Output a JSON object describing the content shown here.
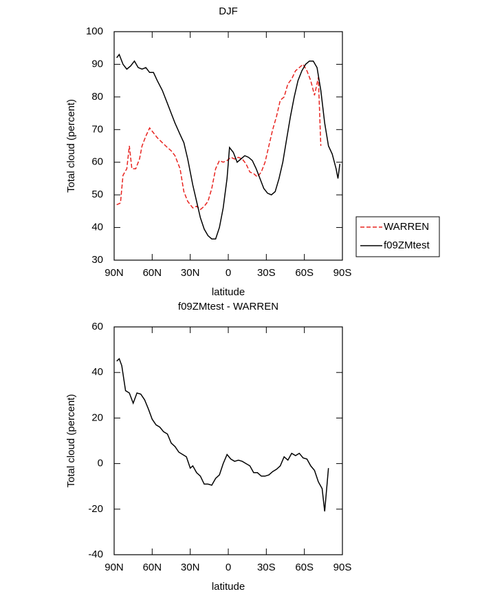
{
  "chart_data": [
    {
      "type": "line",
      "title": "DJF",
      "xlabel": "latitude",
      "ylabel": "Total cloud (percent)",
      "xlim": [
        90,
        -90
      ],
      "xticks": [
        {
          "value": 90,
          "label": "90N"
        },
        {
          "value": 60,
          "label": "60N"
        },
        {
          "value": 30,
          "label": "30N"
        },
        0,
        {
          "value": -30,
          "label": "30S"
        },
        {
          "value": -60,
          "label": "60S"
        },
        {
          "value": -90,
          "label": "90S"
        }
      ],
      "ylim": [
        30,
        100
      ],
      "yticks": [
        30,
        40,
        50,
        60,
        70,
        80,
        90,
        100
      ],
      "legend": "right",
      "series": [
        {
          "name": "WARREN",
          "color": "#e8231f",
          "dash": true,
          "x": [
            88,
            85,
            83,
            80,
            78,
            76,
            73,
            70,
            68,
            65,
            62,
            59,
            56,
            52,
            48,
            45,
            42,
            38,
            35,
            32,
            28,
            25,
            22,
            19,
            16,
            13,
            10,
            7,
            4,
            1,
            -2,
            -5,
            -8,
            -11,
            -14,
            -17,
            -20,
            -23,
            -26,
            -29,
            -32,
            -35,
            -38,
            -41,
            -44,
            -47,
            -50,
            -53,
            -56,
            -59,
            -62,
            -65,
            -68,
            -71,
            -73
          ],
          "values": [
            47,
            47.5,
            56,
            58,
            65,
            58,
            58,
            61,
            65,
            68,
            70.5,
            69,
            67.5,
            66,
            64.5,
            63.5,
            62,
            58,
            51,
            48,
            46,
            46.5,
            45.5,
            46.5,
            48,
            52,
            58,
            60.5,
            60,
            60.5,
            61.5,
            61,
            61.5,
            61,
            59.5,
            57,
            56.5,
            55.5,
            57,
            60,
            65,
            70,
            74,
            79,
            80,
            84,
            85.5,
            88,
            89,
            90,
            88,
            85,
            80.5,
            86,
            65
          ]
        },
        {
          "name": "f09ZMtest",
          "color": "#000000",
          "dash": false,
          "x": [
            88,
            86,
            83,
            80,
            77,
            74,
            71,
            68,
            65,
            62,
            59,
            56,
            52,
            48,
            45,
            42,
            38,
            35,
            32,
            28,
            25,
            22,
            19,
            16,
            13,
            10,
            7,
            4,
            1,
            -1,
            -4,
            -7,
            -10,
            -13,
            -16,
            -19,
            -22,
            -25,
            -28,
            -31,
            -34,
            -37,
            -40,
            -43,
            -46,
            -49,
            -52,
            -55,
            -58,
            -61,
            -64,
            -67,
            -70,
            -73,
            -76,
            -79,
            -82,
            -85,
            -86.5,
            -88
          ],
          "values": [
            92,
            93,
            90,
            88.5,
            89.5,
            91,
            89,
            88.5,
            89,
            87.5,
            87.5,
            85,
            82,
            78,
            75,
            72,
            68.5,
            66,
            61,
            53,
            48,
            43,
            39.5,
            37.5,
            36.5,
            36.5,
            40,
            46,
            55,
            64.5,
            63,
            60,
            61,
            62,
            61.5,
            60.5,
            58,
            55,
            52,
            50.5,
            50,
            51,
            55,
            60,
            67,
            74,
            80,
            85,
            88,
            90,
            91,
            91,
            89,
            82,
            72,
            65,
            62.5,
            58,
            55,
            59.5
          ]
        }
      ]
    },
    {
      "type": "line",
      "title": "f09ZMtest - WARREN",
      "xlabel": "latitude",
      "ylabel": "Total cloud (percent)",
      "xlim": [
        90,
        -90
      ],
      "xticks": [
        {
          "value": 90,
          "label": "90N"
        },
        {
          "value": 60,
          "label": "60N"
        },
        {
          "value": 30,
          "label": "30N"
        },
        0,
        {
          "value": -30,
          "label": "30S"
        },
        {
          "value": -60,
          "label": "60S"
        },
        {
          "value": -90,
          "label": "90S"
        }
      ],
      "ylim": [
        -40,
        60
      ],
      "yticks": [
        -40,
        -20,
        0,
        20,
        40,
        60
      ],
      "color": "#000000",
      "x": [
        88,
        86,
        84,
        81,
        78,
        75,
        72,
        69,
        66,
        63,
        60,
        57,
        54,
        51,
        48,
        45,
        42,
        39,
        36,
        33,
        30,
        28,
        25,
        22,
        19,
        16,
        13,
        10,
        7,
        4,
        1,
        -2,
        -5,
        -8,
        -11,
        -14,
        -17,
        -20,
        -23,
        -26,
        -29,
        -32,
        -35,
        -38,
        -41,
        -44,
        -47,
        -50,
        -53,
        -56,
        -59,
        -62,
        -65,
        -68,
        -71,
        -74,
        -76,
        -79
      ],
      "values": [
        45,
        46,
        43,
        32,
        31,
        26.5,
        31,
        30.5,
        28,
        24,
        19.5,
        17,
        16,
        14,
        13,
        9,
        7.5,
        5,
        4,
        3,
        -2,
        -1,
        -4,
        -5.5,
        -9,
        -9,
        -9.5,
        -6.5,
        -5,
        0,
        4,
        2,
        1,
        1.5,
        1,
        0,
        -1,
        -4,
        -4,
        -5.5,
        -5.5,
        -5,
        -3.5,
        -2.5,
        -1,
        3,
        1.5,
        4.5,
        3.5,
        4.5,
        2.5,
        2,
        -1,
        -3,
        -8,
        -11,
        -21,
        -2
      ]
    }
  ]
}
